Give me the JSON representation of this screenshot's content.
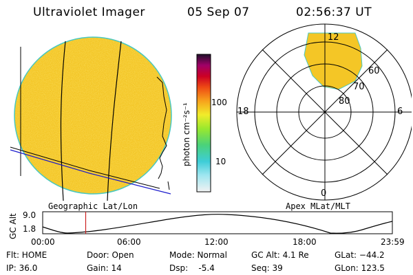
{
  "header": {
    "title": "Ultraviolet Imager",
    "date": "05 Sep 07",
    "time": "02:56:37 UT"
  },
  "left_panel": {
    "label": "Geographic Lat/Lon"
  },
  "colorbar": {
    "unit_label": "photon cm⁻²s⁻¹",
    "ticks": [
      "100",
      "10"
    ]
  },
  "right_panel": {
    "label": "Apex MLat/MLT",
    "mlt_labels": {
      "top": "12",
      "left": "18",
      "right": "6",
      "bottom": "0"
    },
    "mlat_labels": [
      "60",
      "70",
      "80"
    ]
  },
  "altitude_plot": {
    "ylabel": "GC Alt",
    "yticks": [
      "9.0",
      "1.8"
    ],
    "xticks": [
      "00:00",
      "06:00",
      "12:00",
      "18:00",
      "23:59"
    ],
    "current_time_fraction": 0.123
  },
  "status": {
    "flt": "Flt: HOME",
    "ip": "IP: 36.0",
    "door": "Door: Open",
    "gain": "Gain: 14",
    "mode": "Mode: Normal",
    "dsp": "Dsp:    -5.4",
    "gc_alt": "GC Alt: 4.1 Re",
    "seq": "Seq: 39",
    "glat": "GLat: −44.2",
    "glon": "GLon: 123.5"
  },
  "colors": {
    "disk_fill": "#f6cc2c",
    "disk_outline": "#48c8c0",
    "time_marker": "#cc2020",
    "coast_line": "#1a1acc"
  }
}
